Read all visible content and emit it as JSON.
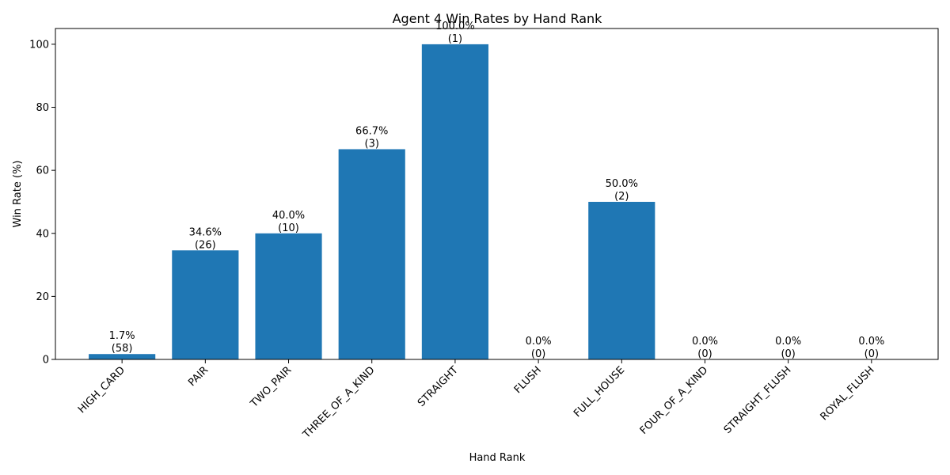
{
  "chart_data": {
    "type": "bar",
    "title": "Agent 4 Win Rates by Hand Rank",
    "xlabel": "Hand Rank",
    "ylabel": "Win Rate (%)",
    "ylim": [
      0,
      105
    ],
    "yticks": [
      0,
      20,
      40,
      60,
      80,
      100
    ],
    "categories": [
      "HIGH_CARD",
      "PAIR",
      "TWO_PAIR",
      "THREE_OF_A_KIND",
      "STRAIGHT",
      "FLUSH",
      "FULL_HOUSE",
      "FOUR_OF_A_KIND",
      "STRAIGHT_FLUSH",
      "ROYAL_FLUSH"
    ],
    "values": [
      1.7,
      34.6,
      40.0,
      66.7,
      100.0,
      0.0,
      50.0,
      0.0,
      0.0,
      0.0
    ],
    "counts": [
      58,
      26,
      10,
      3,
      1,
      0,
      2,
      0,
      0,
      0
    ],
    "value_labels": [
      "1.7%",
      "34.6%",
      "40.0%",
      "66.7%",
      "100.0%",
      "0.0%",
      "50.0%",
      "0.0%",
      "0.0%",
      "0.0%"
    ],
    "count_labels": [
      "(58)",
      "(26)",
      "(10)",
      "(3)",
      "(1)",
      "(0)",
      "(2)",
      "(0)",
      "(0)",
      "(0)"
    ],
    "bar_color": "#1f77b4",
    "grid": false,
    "legend": "none"
  }
}
